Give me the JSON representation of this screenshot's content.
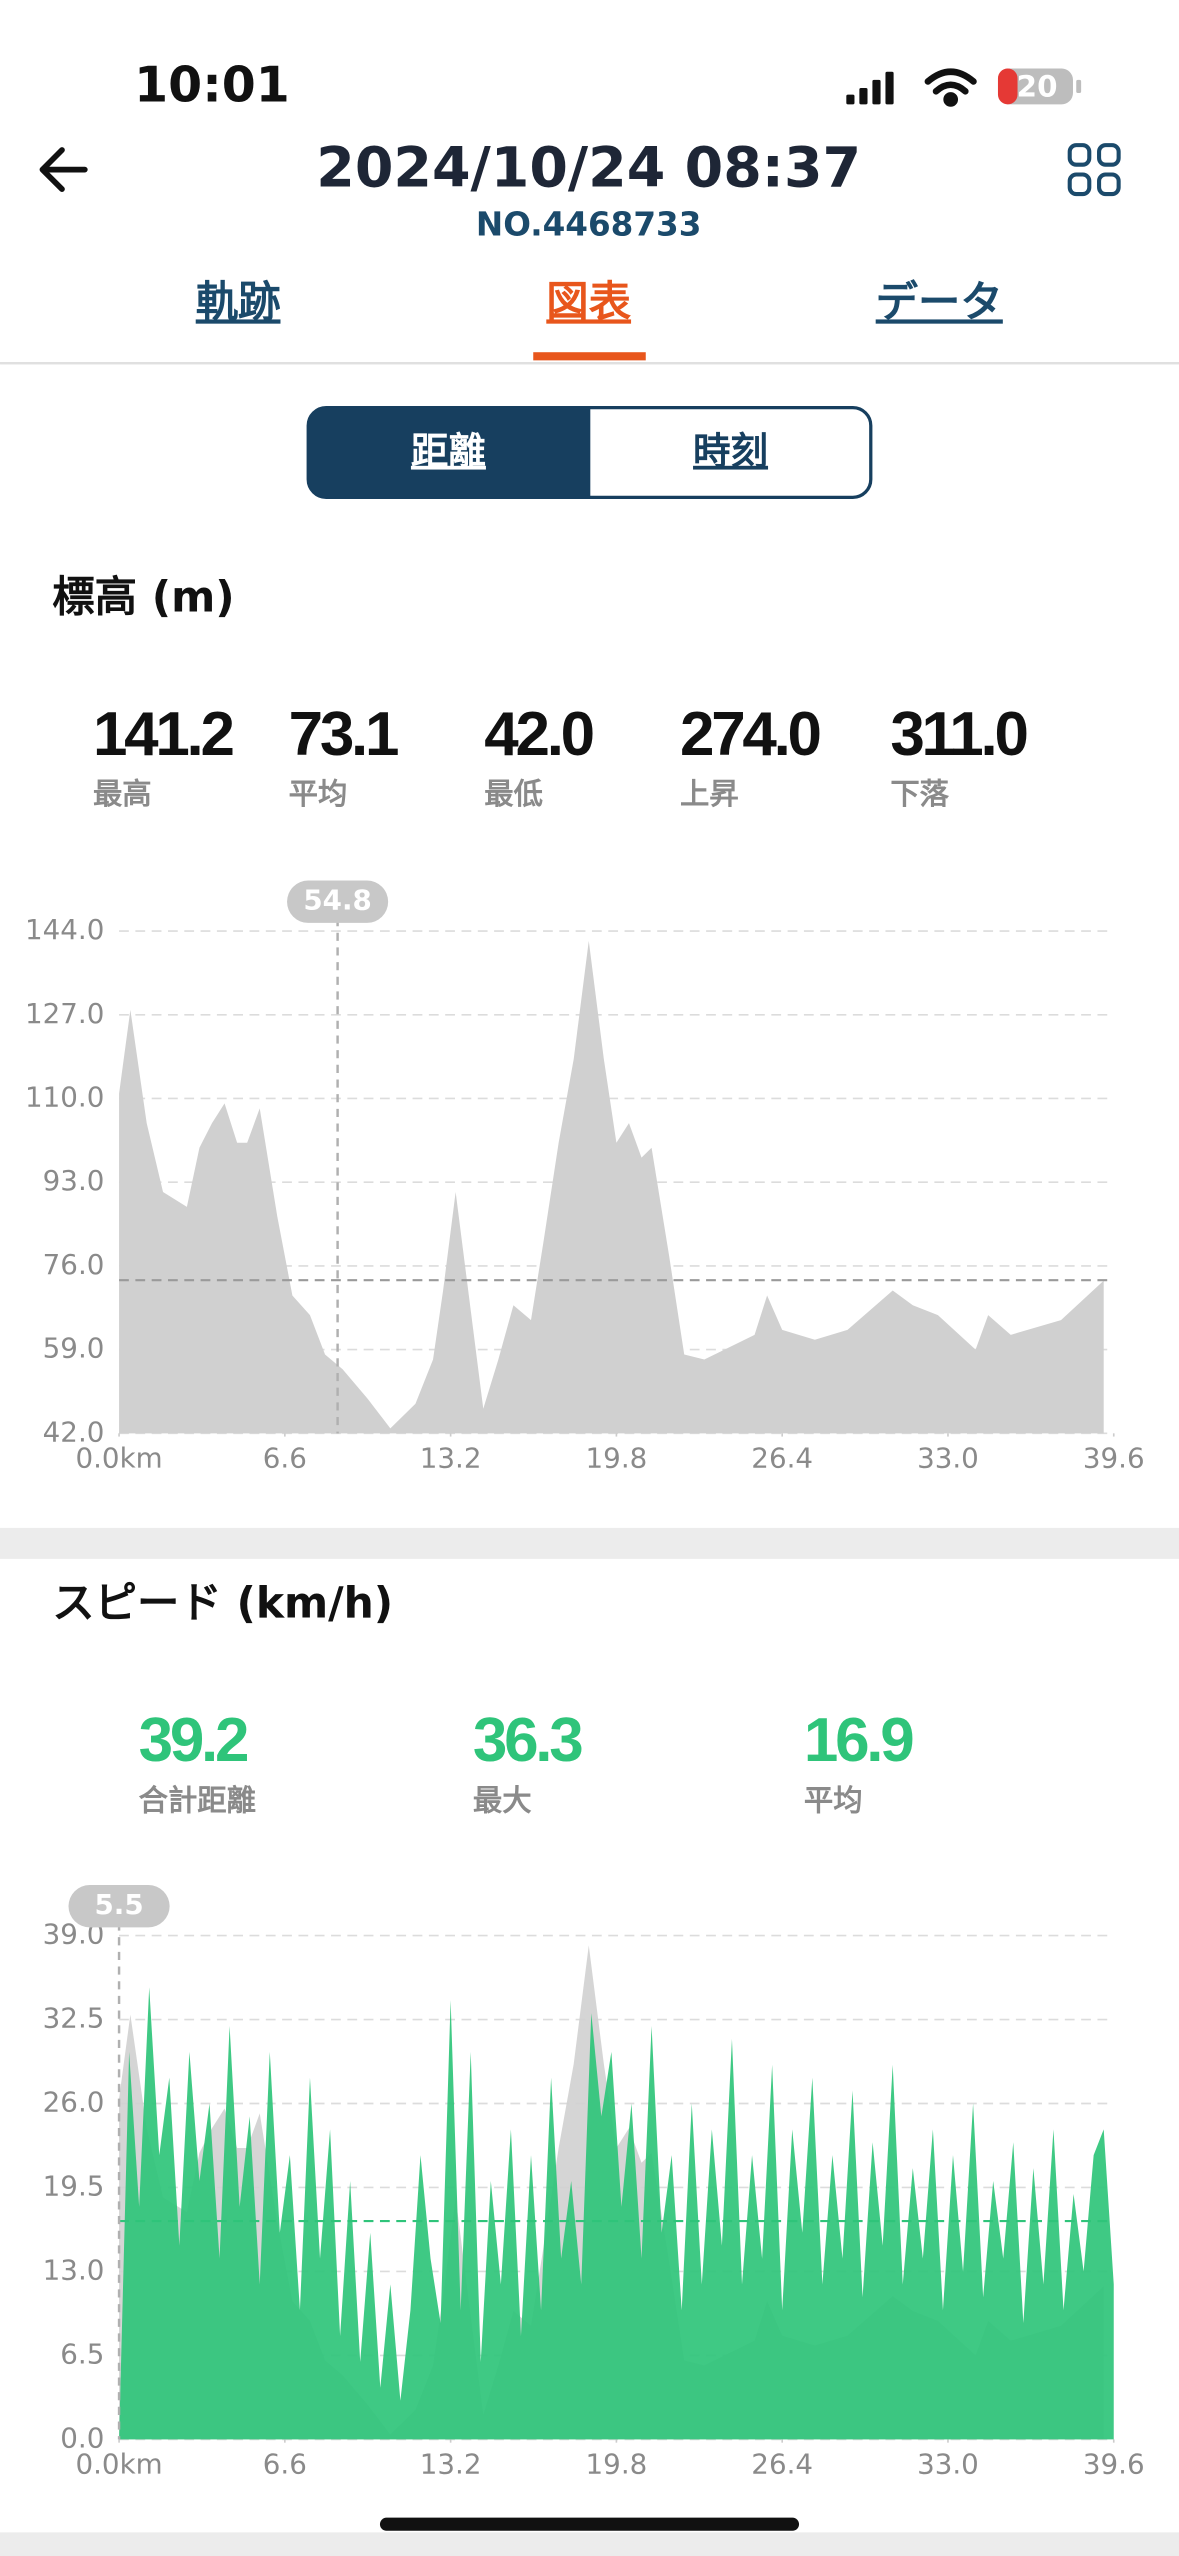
{
  "status_bar": {
    "time": "10:01",
    "battery": "20"
  },
  "header": {
    "title": "2024/10/24 08:37",
    "subtitle": "NO.4468733"
  },
  "tabs": [
    "軌跡",
    "図表",
    "データ"
  ],
  "toggle": [
    "距離",
    "時刻"
  ],
  "chart_data": [
    {
      "type": "area",
      "title": "標高 (m)",
      "stats": [
        {
          "value": "141.2",
          "label": "最高"
        },
        {
          "value": "73.1",
          "label": "平均"
        },
        {
          "value": "42.0",
          "label": "最低"
        },
        {
          "value": "274.0",
          "label": "上昇"
        },
        {
          "value": "311.0",
          "label": "下落"
        }
      ],
      "x": [
        0,
        0.45,
        1.1,
        1.75,
        2.7,
        3.2,
        3.7,
        4.2,
        4.7,
        5.1,
        5.6,
        6.3,
        6.9,
        7.6,
        8.2,
        8.9,
        9.9,
        10.8,
        11.8,
        12.5,
        12.9,
        13.4,
        13.9,
        14.5,
        15.1,
        15.7,
        16.4,
        16.9,
        17.5,
        18.1,
        18.7,
        19.3,
        19.8,
        20.3,
        20.8,
        21.2,
        21.9,
        22.5,
        23.3,
        24.5,
        25.3,
        25.8,
        26.4,
        27.7,
        29.0,
        30.8,
        31.6,
        32.6,
        34.1,
        34.6,
        35.5,
        37.5,
        39.2
      ],
      "values": [
        111,
        128,
        105,
        91,
        88,
        100,
        105,
        109,
        101,
        101,
        108,
        86,
        70,
        66,
        58,
        55,
        49,
        43,
        48,
        57,
        71,
        91,
        71,
        47,
        57,
        68,
        65,
        81,
        101,
        118,
        142,
        118,
        101,
        105,
        98,
        100,
        78,
        58,
        57,
        60,
        62,
        70,
        63,
        61,
        63,
        71,
        68,
        66,
        59,
        66,
        62,
        65,
        73
      ],
      "color": "#d0d0d0",
      "mean": 73.1,
      "cursor": {
        "x": 8.7,
        "value": 54.8
      },
      "xlim": [
        0,
        39.6
      ],
      "xticks": [
        {
          "value": 0,
          "label": "0.0km"
        },
        6.6,
        13.2,
        19.8,
        26.4,
        {
          "value": 33,
          "label": "33.0"
        },
        39.6
      ],
      "ylim": [
        42,
        144
      ],
      "yticks": [
        {
          "value": 42,
          "label": "42.0"
        },
        {
          "value": 59,
          "label": "59.0"
        },
        {
          "value": 76,
          "label": "76.0"
        },
        {
          "value": 93,
          "label": "93.0"
        },
        {
          "value": 110,
          "label": "110.0"
        },
        {
          "value": 127,
          "label": "127.0"
        },
        {
          "value": 144,
          "label": "144.0"
        }
      ],
      "grid": true
    },
    {
      "type": "area",
      "title": "スピード (km/h)",
      "stats": [
        {
          "value": "39.2",
          "label": "合計距離"
        },
        {
          "value": "36.3",
          "label": "最大"
        },
        {
          "value": "16.9",
          "label": "平均"
        }
      ],
      "x": [
        0,
        0.4,
        0.8,
        1.2,
        1.6,
        2,
        2.4,
        2.8,
        3.2,
        3.6,
        4,
        4.4,
        4.8,
        5.2,
        5.6,
        6,
        6.4,
        6.8,
        7.2,
        7.6,
        8,
        8.4,
        8.8,
        9.2,
        9.6,
        10,
        10.4,
        10.8,
        11.2,
        11.6,
        12,
        12.4,
        12.8,
        13.2,
        13.6,
        14,
        14.4,
        14.8,
        15.2,
        15.6,
        16,
        16.4,
        16.8,
        17.2,
        17.6,
        18,
        18.4,
        18.8,
        19.2,
        19.6,
        20,
        20.4,
        20.8,
        21.2,
        21.6,
        22,
        22.4,
        22.8,
        23.2,
        23.6,
        24,
        24.4,
        24.8,
        25.2,
        25.6,
        26,
        26.4,
        26.8,
        27.2,
        27.6,
        28,
        28.4,
        28.8,
        29.2,
        29.6,
        30,
        30.4,
        30.8,
        31.2,
        31.6,
        32,
        32.4,
        32.8,
        33.2,
        33.6,
        34,
        34.4,
        34.8,
        35.2,
        35.6,
        36,
        36.4,
        36.8,
        37.2,
        37.6,
        38,
        38.4,
        38.8,
        39.2,
        39.6
      ],
      "values": [
        0,
        30,
        18,
        35,
        22,
        28,
        15,
        30,
        20,
        26,
        14,
        32,
        18,
        25,
        12,
        30,
        16,
        22,
        10,
        28,
        14,
        24,
        8,
        20,
        6,
        16,
        4,
        12,
        3,
        10,
        22,
        14,
        9,
        34,
        10,
        30,
        6,
        20,
        12,
        24,
        8,
        22,
        10,
        28,
        14,
        20,
        12,
        33,
        25,
        30,
        18,
        26,
        14,
        32,
        16,
        22,
        10,
        26,
        12,
        24,
        15,
        31,
        12,
        22,
        14,
        29,
        10,
        24,
        16,
        28,
        12,
        22,
        14,
        27,
        11,
        23,
        15,
        29,
        12,
        21,
        14,
        24,
        10,
        22,
        13,
        26,
        11,
        20,
        14,
        23,
        9,
        21,
        12,
        24,
        10,
        19,
        13,
        22,
        24,
        12
      ],
      "color": "#2fc47a",
      "mean": 16.9,
      "cursor": {
        "x": 0,
        "value": 5.5
      },
      "xlim": [
        0,
        39.6
      ],
      "xticks": [
        {
          "value": 0,
          "label": "0.0km"
        },
        6.6,
        13.2,
        19.8,
        26.4,
        {
          "value": 33,
          "label": "33.0"
        },
        39.6
      ],
      "ylim": [
        0,
        39
      ],
      "yticks": [
        {
          "value": 0,
          "label": "0.0"
        },
        6.5,
        {
          "value": 13,
          "label": "13.0"
        },
        19.5,
        {
          "value": 26,
          "label": "26.0"
        },
        32.5,
        {
          "value": 39,
          "label": "39.0"
        }
      ],
      "grid": true
    }
  ]
}
